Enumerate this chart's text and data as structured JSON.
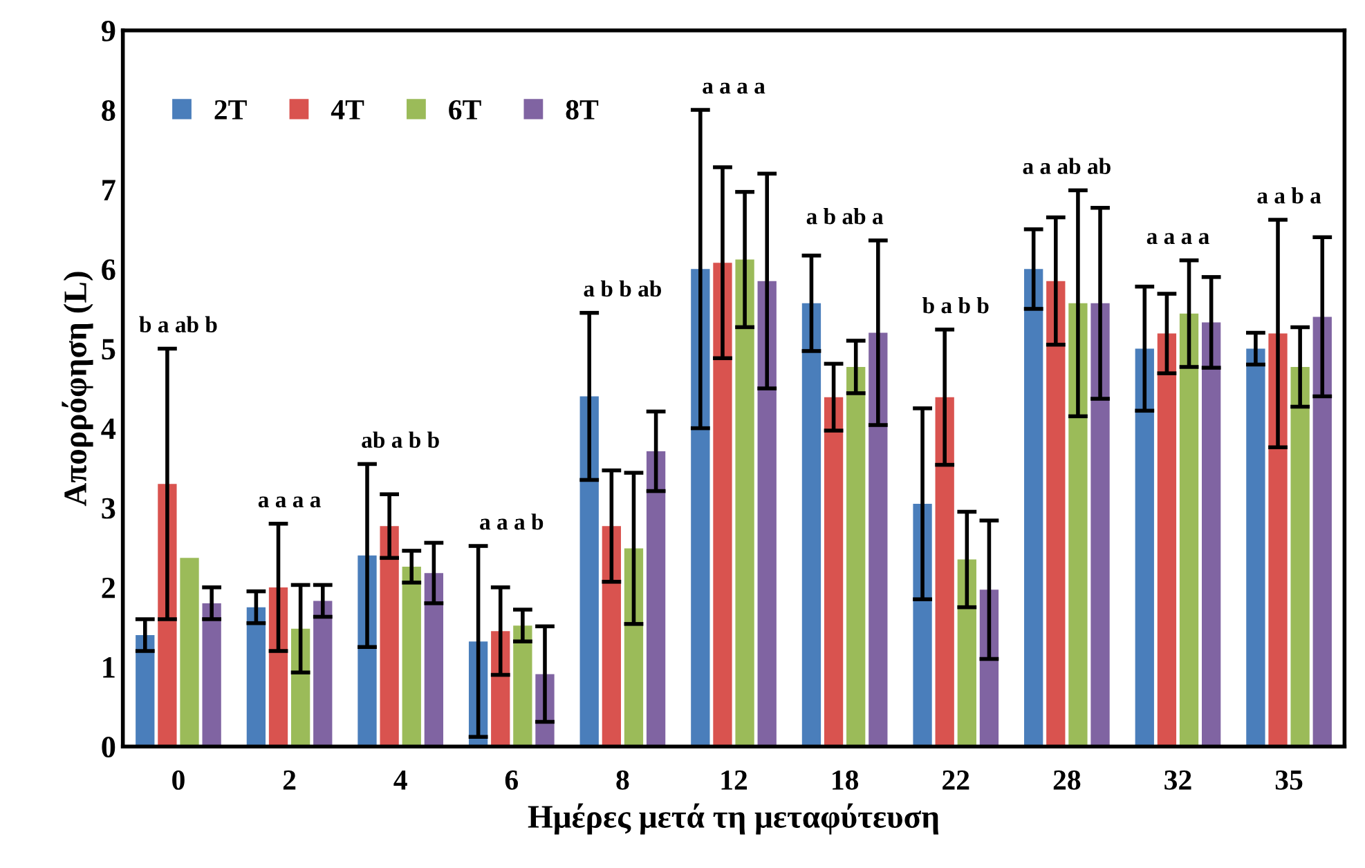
{
  "chart_data": {
    "type": "bar",
    "xlabel": "Ημέρες μετά τη μεταφύτευση",
    "ylabel": "Απορρόφηση (L)",
    "categories": [
      "0",
      "2",
      "4",
      "6",
      "8",
      "12",
      "18",
      "22",
      "28",
      "32",
      "35"
    ],
    "ylim": [
      0,
      9
    ],
    "yticks": [
      0,
      1,
      2,
      3,
      4,
      5,
      6,
      7,
      8,
      9
    ],
    "legend": "top left",
    "grid": false,
    "series": [
      {
        "name": "2T",
        "color": "#4a7ebb",
        "values": [
          1.4,
          1.75,
          2.4,
          1.32,
          4.4,
          6.0,
          5.57,
          3.05,
          6.0,
          5.0,
          5.0
        ],
        "errors": [
          0.2,
          0.2,
          1.15,
          1.2,
          1.05,
          2.0,
          0.6,
          1.2,
          0.5,
          0.78,
          0.2
        ]
      },
      {
        "name": "4T",
        "color": "#d9534f",
        "values": [
          3.3,
          2.0,
          2.77,
          1.45,
          2.77,
          6.08,
          4.39,
          4.39,
          5.85,
          5.19,
          5.19
        ],
        "errors": [
          1.7,
          0.8,
          0.4,
          0.55,
          0.7,
          1.2,
          0.42,
          0.85,
          0.8,
          0.5,
          1.43
        ]
      },
      {
        "name": "6T",
        "color": "#9bbb59",
        "values": [
          2.37,
          1.48,
          2.26,
          1.52,
          2.49,
          6.12,
          4.77,
          2.35,
          5.57,
          5.44,
          4.77
        ],
        "errors": [
          null,
          0.55,
          0.2,
          0.2,
          0.95,
          0.85,
          0.33,
          0.6,
          1.42,
          0.67,
          0.5
        ]
      },
      {
        "name": "8T",
        "color": "#8064a2",
        "values": [
          1.8,
          1.83,
          2.18,
          0.91,
          3.71,
          5.85,
          5.2,
          1.97,
          5.57,
          5.33,
          5.4
        ],
        "errors": [
          0.2,
          0.2,
          0.38,
          0.6,
          0.5,
          1.35,
          1.16,
          0.87,
          1.2,
          0.57,
          1.0
        ]
      }
    ],
    "annotations": [
      "b a ab b",
      "a a a a",
      "ab a b b",
      "a a a b",
      "a b b ab",
      "a a a a",
      "a b ab a",
      "b a b b",
      "a a ab ab",
      "a a a a",
      "a a b a"
    ]
  }
}
